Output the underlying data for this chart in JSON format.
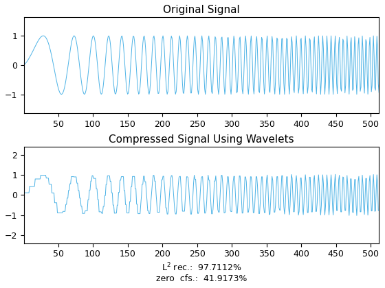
{
  "title1": "Original Signal",
  "title2": "Compressed Signal Using Wavelets",
  "xlabel2_line1": "L$^2$ rec.:  97.7112%",
  "xlabel2_line2": "zero  cfs.:  41.9173%",
  "line_color": "#4db3e6",
  "line_width": 0.7,
  "n_samples": 512,
  "xticks": [
    50,
    100,
    150,
    200,
    250,
    300,
    350,
    400,
    450,
    500
  ],
  "yticks1": [
    -1,
    0,
    1
  ],
  "yticks2": [
    -2,
    -1,
    0,
    1,
    2
  ],
  "ylim1": [
    -1.65,
    1.65
  ],
  "ylim2": [
    -2.4,
    2.4
  ],
  "fig_width": 5.6,
  "fig_height": 4.2,
  "dpi": 100,
  "chirp_f0": 2,
  "chirp_f1": 100,
  "compress_keep_ratio": 0.58
}
